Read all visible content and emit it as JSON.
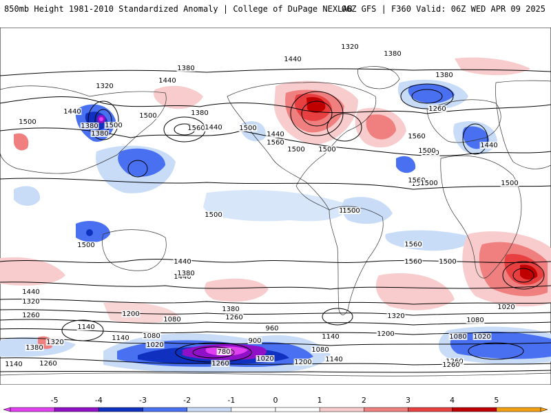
{
  "header": {
    "left_title": "850mb Height 1981-2010 Standardized Anomaly | College of DuPage NEXLAB",
    "right_title": "06Z GFS | F360 Valid: 06Z WED APR 09 2025"
  },
  "map": {
    "contour_labels": [
      "1320",
      "1380",
      "1440",
      "1380",
      "1440",
      "1380",
      "1320",
      "1440",
      "1500",
      "1380",
      "1500",
      "1500",
      "1560",
      "1440",
      "1500",
      "1560",
      "1500",
      "1440",
      "1500",
      "1380",
      "1380",
      "1260",
      "1440",
      "1500",
      "1500",
      "1560",
      "1500",
      "1500",
      "1500",
      "1500",
      "1500",
      "1500",
      "1440",
      "1560",
      "1500",
      "1560",
      "1440",
      "1380",
      "1440",
      "1320",
      "1260",
      "1200",
      "1080",
      "1140",
      "1380",
      "1260",
      "1320",
      "1200",
      "1140",
      "1080",
      "1020",
      "960",
      "780",
      "900",
      "1020",
      "1080",
      "1140",
      "1200",
      "1260",
      "1080",
      "1020",
      "1080",
      "1020",
      "1140",
      "1140",
      "1260",
      "1260",
      "1260",
      "1320",
      "1380",
      "1560",
      "1500"
    ],
    "anomaly_colors": {
      "m5": "#e040f0",
      "m4": "#9010c8",
      "m3": "#1030c0",
      "m2": "#4870f0",
      "m1": "#c8dcf8",
      "p1": "#f8cccc",
      "p2": "#f08080",
      "p3": "#e84040",
      "p4": "#c00000",
      "p5": "#f0a010"
    }
  },
  "colorbar": {
    "ticks": [
      "-5",
      "-4",
      "-3",
      "-2",
      "-1",
      "0",
      "1",
      "2",
      "3",
      "4",
      "5"
    ],
    "colors": [
      "#e040f0",
      "#9010c8",
      "#1030c0",
      "#4870f0",
      "#c8dcf8",
      "#ffffff",
      "#ffffff",
      "#f8cccc",
      "#f08080",
      "#e84040",
      "#c00000",
      "#f0a010"
    ]
  }
}
